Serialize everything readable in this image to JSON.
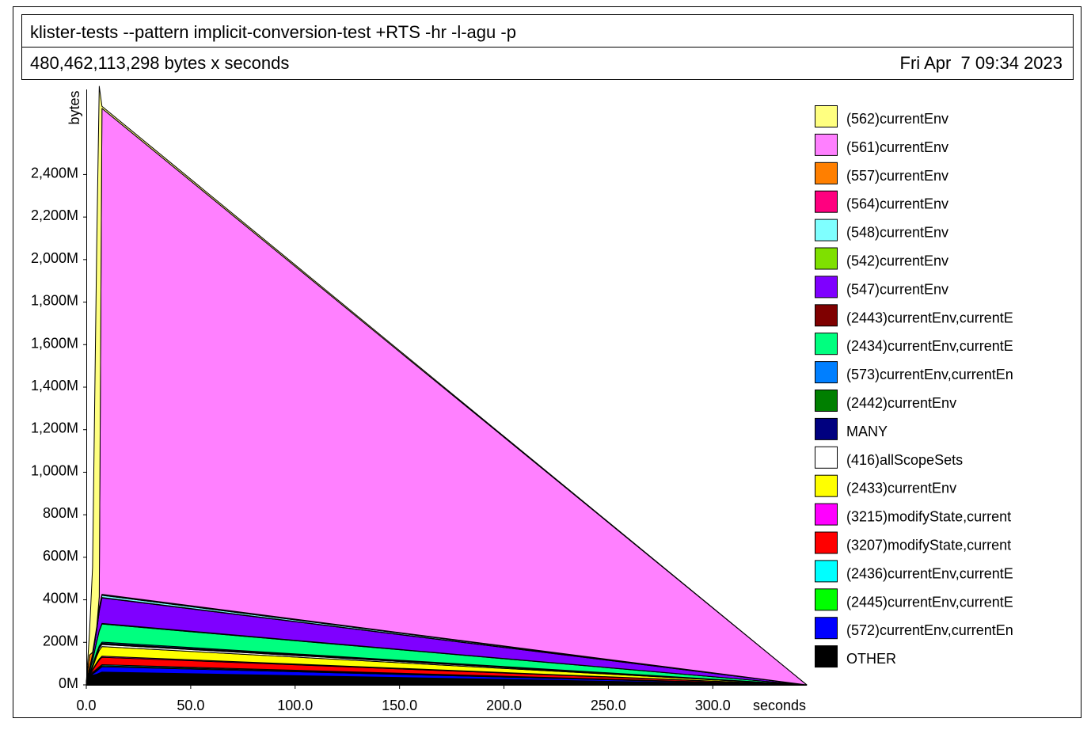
{
  "header": {
    "title": "klister-tests --pattern implicit-conversion-test +RTS -hr -l-agu -p",
    "total": "480,462,113,298 bytes x seconds",
    "date": "Fri Apr  7 09:34 2023"
  },
  "chart_data": {
    "type": "area",
    "stacked": true,
    "xlabel": "seconds",
    "ylabel": "bytes",
    "xlim": [
      0,
      345
    ],
    "ylim": [
      0,
      2800
    ],
    "y_unit": "M",
    "x_ticks": [
      "0.0",
      "50.0",
      "100.0",
      "150.0",
      "200.0",
      "250.0",
      "300.0"
    ],
    "y_ticks": [
      "0M",
      "200M",
      "400M",
      "600M",
      "800M",
      "1,000M",
      "1,200M",
      "1,400M",
      "1,600M",
      "1,800M",
      "2,000M",
      "2,200M",
      "2,400M"
    ],
    "y_tick_values": [
      0,
      200,
      400,
      600,
      800,
      1000,
      1200,
      1400,
      1600,
      1800,
      2000,
      2200,
      2400
    ],
    "x_tick_values": [
      0,
      50,
      100,
      150,
      200,
      250,
      300
    ],
    "x": [
      0,
      1.5,
      3,
      5,
      6.2,
      7.5,
      345
    ],
    "legend_position": "right",
    "series": [
      {
        "name": "OTHER",
        "color": "#000000",
        "values": [
          10,
          30,
          45,
          50,
          55,
          60,
          0
        ]
      },
      {
        "name": "(572)currentEnv,currentEn",
        "color": "#0000ff",
        "values": [
          0,
          3,
          6,
          15,
          20,
          25,
          0
        ]
      },
      {
        "name": "(2445)currentEnv,currentE",
        "color": "#00ff00",
        "values": [
          0,
          2,
          4,
          5,
          5,
          5,
          0
        ]
      },
      {
        "name": "(2436)currentEnv,currentE",
        "color": "#00ffff",
        "values": [
          0,
          2,
          4,
          5,
          5,
          5,
          0
        ]
      },
      {
        "name": "(3207)modifyState,current",
        "color": "#ff0000",
        "values": [
          0,
          5,
          10,
          25,
          32,
          35,
          0
        ]
      },
      {
        "name": "(3215)modifyState,current",
        "color": "#ff00ff",
        "values": [
          0,
          2,
          3,
          5,
          5,
          5,
          0
        ]
      },
      {
        "name": "(2433)currentEnv",
        "color": "#ffff00",
        "values": [
          0,
          5,
          10,
          30,
          40,
          45,
          0
        ]
      },
      {
        "name": "(416)allScopeSets",
        "color": "#ffffff",
        "values": [
          0,
          2,
          4,
          8,
          10,
          10,
          0
        ]
      },
      {
        "name": "MANY",
        "color": "#00007f",
        "values": [
          0,
          1,
          2,
          3,
          3,
          3,
          0
        ]
      },
      {
        "name": "(2442)currentEnv",
        "color": "#007f00",
        "values": [
          0,
          1,
          2,
          3,
          3,
          3,
          0
        ]
      },
      {
        "name": "(573)currentEnv,currentEn",
        "color": "#007fff",
        "values": [
          0,
          2,
          3,
          5,
          5,
          5,
          0
        ]
      },
      {
        "name": "(2434)currentEnv,currentE",
        "color": "#00ff7f",
        "values": [
          0,
          10,
          20,
          50,
          70,
          85,
          0
        ]
      },
      {
        "name": "(2443)currentEnv,currentE",
        "color": "#7f0000",
        "values": [
          0,
          1,
          2,
          3,
          3,
          3,
          0
        ]
      },
      {
        "name": "(547)currentEnv",
        "color": "#7f00ff",
        "values": [
          0,
          10,
          20,
          50,
          90,
          120,
          0
        ]
      },
      {
        "name": "(542)currentEnv",
        "color": "#7fe000",
        "values": [
          0,
          1,
          2,
          2,
          2,
          2,
          0
        ]
      },
      {
        "name": "(548)currentEnv",
        "color": "#7fffff",
        "values": [
          0,
          2,
          4,
          8,
          10,
          10,
          0
        ]
      },
      {
        "name": "(564)currentEnv",
        "color": "#ff007f",
        "values": [
          0,
          1,
          2,
          2,
          2,
          2,
          0
        ]
      },
      {
        "name": "(557)currentEnv",
        "color": "#ff7f00",
        "values": [
          0,
          60,
          10,
          5,
          5,
          3,
          0
        ]
      },
      {
        "name": "(561)currentEnv",
        "color": "#ff80ff",
        "values": [
          0,
          0,
          0,
          0,
          50,
          2285,
          0
        ]
      },
      {
        "name": "(562)currentEnv",
        "color": "#ffff80",
        "values": [
          0,
          100,
          400,
          1800,
          2400,
          10,
          0
        ]
      }
    ]
  }
}
